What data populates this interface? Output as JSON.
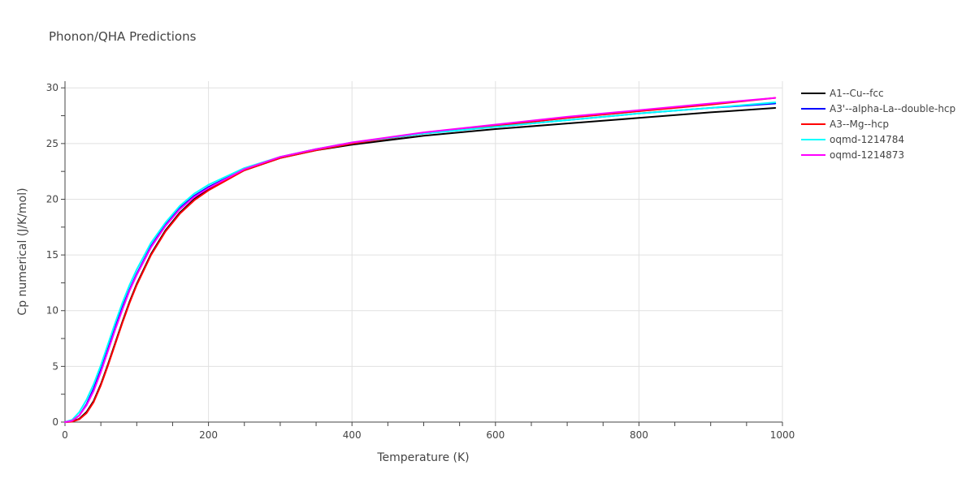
{
  "chart_data": {
    "type": "line",
    "title": "Phonon/QHA Predictions",
    "xlabel": "Temperature (K)",
    "ylabel": "Cp numerical (J/K/mol)",
    "xlim": [
      0,
      1000
    ],
    "ylim": [
      0,
      30.6
    ],
    "xticks": [
      0,
      200,
      400,
      600,
      800,
      1000
    ],
    "yticks": [
      0,
      5,
      10,
      15,
      20,
      25,
      30
    ],
    "grid": true,
    "legend_position": "top-right",
    "series": [
      {
        "name": "A1--Cu--fcc",
        "color": "#000000",
        "x": [
          0,
          10,
          20,
          30,
          40,
          50,
          60,
          70,
          80,
          90,
          100,
          120,
          140,
          160,
          180,
          200,
          250,
          300,
          350,
          400,
          500,
          600,
          700,
          800,
          900,
          990
        ],
        "y": [
          0,
          0.05,
          0.3,
          0.9,
          1.9,
          3.4,
          5.2,
          7.1,
          9.0,
          10.8,
          12.4,
          15.1,
          17.2,
          18.8,
          20.0,
          20.9,
          22.6,
          23.7,
          24.4,
          24.9,
          25.7,
          26.3,
          26.8,
          27.3,
          27.8,
          28.2
        ]
      },
      {
        "name": "A3'--alpha-La--double-hcp",
        "color": "#0000ff",
        "x": [
          0,
          10,
          20,
          30,
          40,
          50,
          60,
          70,
          80,
          90,
          100,
          120,
          140,
          160,
          180,
          200,
          250,
          300,
          350,
          400,
          500,
          600,
          700,
          800,
          900,
          990
        ],
        "y": [
          0,
          0.1,
          0.6,
          1.6,
          3.0,
          4.7,
          6.6,
          8.5,
          10.3,
          11.9,
          13.3,
          15.8,
          17.7,
          19.2,
          20.3,
          21.1,
          22.7,
          23.8,
          24.5,
          25.0,
          25.9,
          26.5,
          27.1,
          27.7,
          28.2,
          28.6
        ]
      },
      {
        "name": "A3--Mg--hcp",
        "color": "#ff0000",
        "x": [
          0,
          10,
          20,
          30,
          40,
          50,
          60,
          70,
          80,
          90,
          100,
          120,
          140,
          160,
          180,
          200,
          250,
          300,
          350,
          400,
          500,
          600,
          700,
          800,
          900,
          990
        ],
        "y": [
          0,
          0.04,
          0.25,
          0.8,
          1.8,
          3.3,
          5.1,
          7.0,
          8.9,
          10.7,
          12.3,
          15.0,
          17.1,
          18.7,
          19.9,
          20.8,
          22.6,
          23.7,
          24.4,
          25.0,
          25.9,
          26.6,
          27.3,
          27.9,
          28.5,
          29.1
        ]
      },
      {
        "name": "oqmd-1214784",
        "color": "#00ffff",
        "x": [
          0,
          10,
          20,
          30,
          40,
          50,
          60,
          70,
          80,
          90,
          100,
          120,
          140,
          160,
          180,
          200,
          250,
          300,
          350,
          400,
          500,
          600,
          700,
          800,
          900,
          990
        ],
        "y": [
          0,
          0.2,
          0.9,
          2.0,
          3.4,
          5.1,
          7.0,
          8.9,
          10.7,
          12.3,
          13.7,
          16.1,
          17.9,
          19.4,
          20.5,
          21.3,
          22.8,
          23.8,
          24.5,
          25.1,
          25.9,
          26.5,
          27.1,
          27.7,
          28.2,
          28.7
        ]
      },
      {
        "name": "oqmd-1214873",
        "color": "#ff00ff",
        "x": [
          0,
          10,
          20,
          30,
          40,
          50,
          60,
          70,
          80,
          90,
          100,
          120,
          140,
          160,
          180,
          200,
          250,
          300,
          350,
          400,
          500,
          600,
          700,
          800,
          900,
          990
        ],
        "y": [
          0,
          0.12,
          0.6,
          1.5,
          2.8,
          4.5,
          6.4,
          8.3,
          10.1,
          11.8,
          13.2,
          15.7,
          17.6,
          19.1,
          20.2,
          21.0,
          22.7,
          23.8,
          24.5,
          25.1,
          26.0,
          26.7,
          27.4,
          28.0,
          28.6,
          29.1
        ]
      }
    ]
  }
}
